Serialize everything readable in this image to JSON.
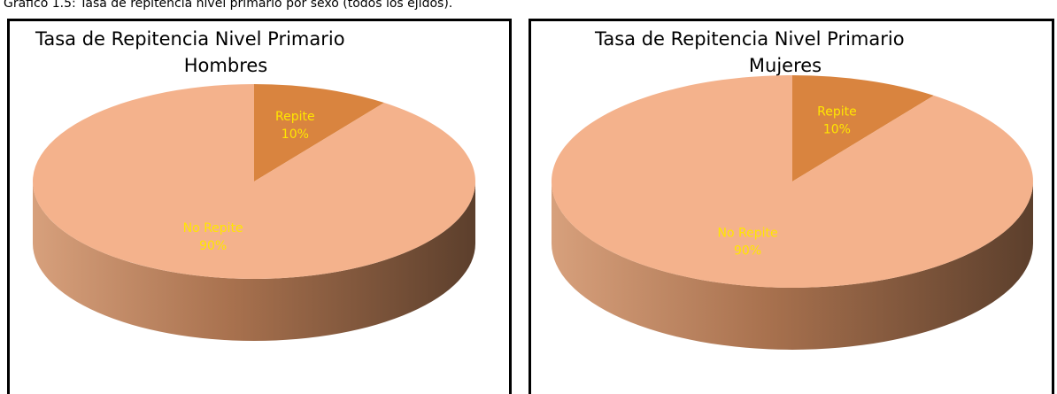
{
  "caption": "Gráfico 1.5: Tasa de repitencia nivel primario por sexo (todos los ejidos).",
  "chart_data": [
    {
      "type": "pie",
      "title": "Tasa de Repitencia Nivel Primario",
      "subtitle": "Hombres",
      "categories": [
        "Repite",
        "No Repite"
      ],
      "values": [
        10,
        90
      ],
      "value_labels": [
        "10%",
        "90%"
      ],
      "colors": [
        "#d9843f",
        "#f4b28c"
      ]
    },
    {
      "type": "pie",
      "title": "Tasa de Repitencia Nivel Primario",
      "subtitle": "Mujeres",
      "categories": [
        "Repite",
        "No Repite"
      ],
      "values": [
        10,
        90
      ],
      "value_labels": [
        "10%",
        "90%"
      ],
      "colors": [
        "#d9843f",
        "#f4b28c"
      ]
    }
  ]
}
